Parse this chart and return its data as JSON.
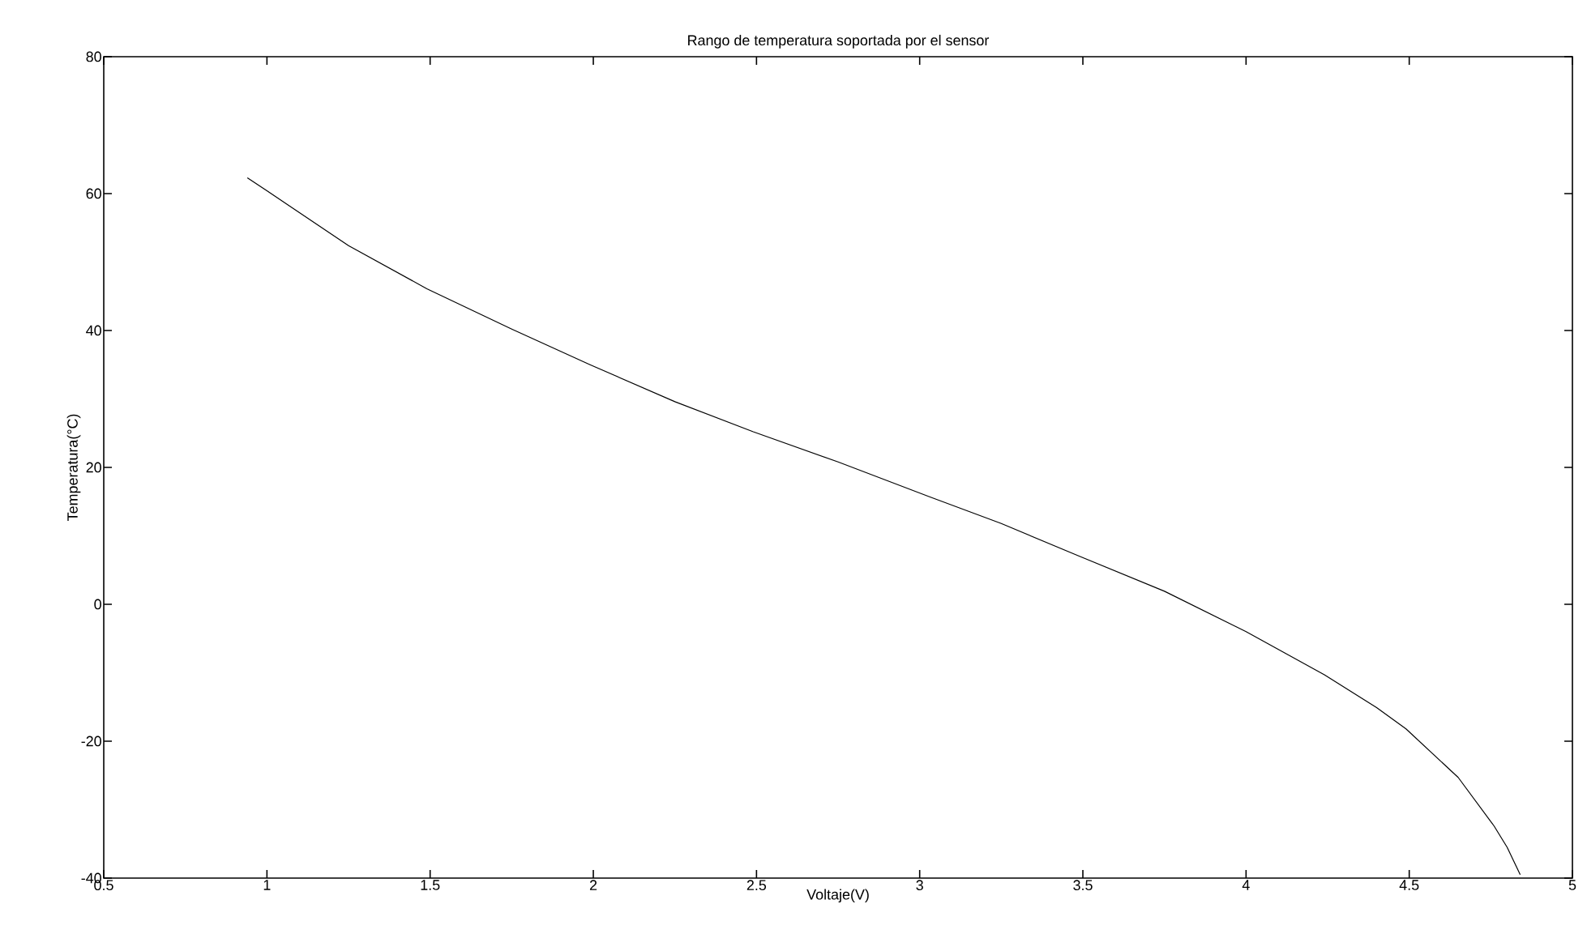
{
  "chart_data": {
    "type": "line",
    "title": "Rango de temperatura soportada por el sensor",
    "xlabel": "Voltaje(V)",
    "ylabel": "Temperatura(°C)",
    "x": [
      0.94,
      1.0,
      1.25,
      1.49,
      1.75,
      1.99,
      2.25,
      2.49,
      2.75,
      3.03,
      3.25,
      3.49,
      3.75,
      4.0,
      4.24,
      4.4,
      4.49,
      4.65,
      4.76,
      4.8,
      4.84
    ],
    "series": [
      {
        "color": "#000000",
        "values": [
          62.3,
          60.4,
          52.4,
          46.1,
          40.2,
          35.0,
          29.6,
          25.2,
          20.8,
          15.7,
          11.8,
          7.0,
          1.9,
          -4.0,
          -10.3,
          -15.1,
          -18.2,
          -25.3,
          -32.4,
          -35.5,
          -39.5
        ]
      }
    ],
    "xlim": [
      0.5,
      5
    ],
    "ylim": [
      -40,
      80
    ],
    "xticks": [
      0.5,
      1,
      1.5,
      2,
      2.5,
      3,
      3.5,
      4,
      4.5,
      5
    ],
    "yticks": [
      -40,
      -20,
      0,
      20,
      40,
      60,
      80
    ],
    "marker": "none",
    "line_style": "solid"
  }
}
